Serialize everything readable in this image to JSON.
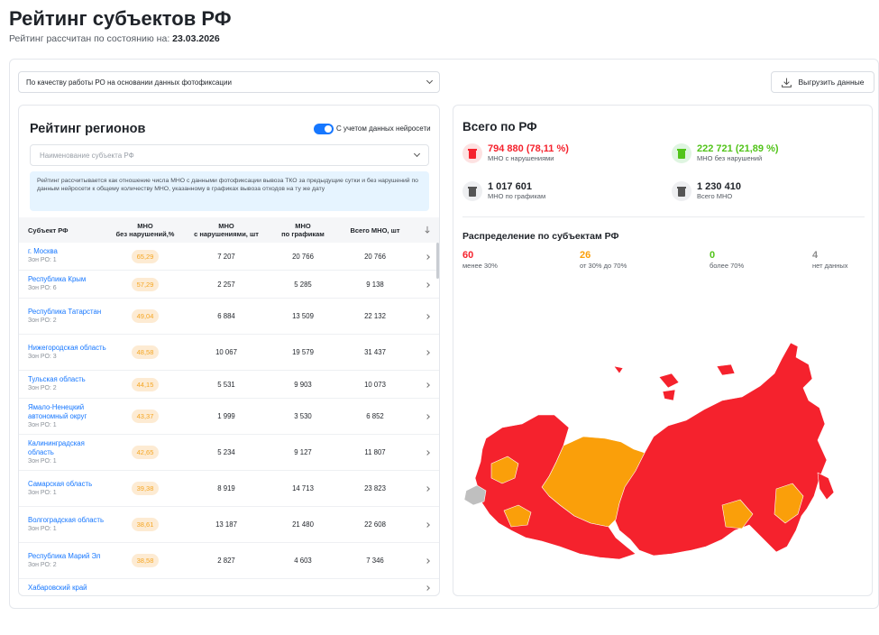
{
  "header": {
    "title": "Рейтинг субъектов РФ",
    "subtitle_prefix": "Рейтинг рассчитан по состоянию на:",
    "subtitle_date": "23.03.2026"
  },
  "filter": {
    "selected": "По качеству работы РО на основании данных фотофиксации"
  },
  "export_button": {
    "label": "Выгрузить данные",
    "icon": "download-icon"
  },
  "rating": {
    "title": "Рейтинг регионов",
    "toggle_label": "С учетом данных нейросети",
    "toggle_on": true,
    "region_placeholder": "Наименование субъекта РФ",
    "info": "Рейтинг рассчитывается как отношение числа МНО с данными фотофиксации вывоза ТКО за предыдущие сутки и без нарушений по данным нейросети к общему количеству МНО, указанному в графиках вывоза отходов на ту же дату",
    "columns": {
      "name": "Субъект РФ",
      "c1_line1": "МНО",
      "c1_line2": "без нарушений,%",
      "c2_line1": "МНО",
      "c2_line2": "с нарушениями, шт",
      "c3_line1": "МНО",
      "c3_line2": "по графикам",
      "c4": "Всего МНО, шт",
      "sort_icon": "arrow-down-icon"
    },
    "rows": [
      {
        "name": "г. Москва",
        "sub": "Зон РО: 1",
        "pct": "65,29",
        "viol": "7 207",
        "sched": "20 766",
        "total": "20 766"
      },
      {
        "name": "Республика Крым",
        "sub": "Зон РО: 6",
        "pct": "57,29",
        "viol": "2 257",
        "sched": "5 285",
        "total": "9 138"
      },
      {
        "name": "Республика Татарстан",
        "sub": "Зон РО: 2",
        "pct": "49,04",
        "viol": "6 884",
        "sched": "13 509",
        "total": "22 132"
      },
      {
        "name": "Нижегородская область",
        "sub": "Зон РО: 3",
        "pct": "48,58",
        "viol": "10 067",
        "sched": "19 579",
        "total": "31 437"
      },
      {
        "name": "Тульская область",
        "sub": "Зон РО: 2",
        "pct": "44,15",
        "viol": "5 531",
        "sched": "9 903",
        "total": "10 073"
      },
      {
        "name": "Ямало-Ненецкий автономный округ",
        "sub": "Зон РО: 1",
        "pct": "43,37",
        "viol": "1 999",
        "sched": "3 530",
        "total": "6 852"
      },
      {
        "name": "Калининградская область",
        "sub": "Зон РО: 1",
        "pct": "42,65",
        "viol": "5 234",
        "sched": "9 127",
        "total": "11 807"
      },
      {
        "name": "Самарская область",
        "sub": "Зон РО: 1",
        "pct": "39,38",
        "viol": "8 919",
        "sched": "14 713",
        "total": "23 823"
      },
      {
        "name": "Волгоградская область",
        "sub": "Зон РО: 1",
        "pct": "38,61",
        "viol": "13 187",
        "sched": "21 480",
        "total": "22 608"
      },
      {
        "name": "Республика Марий Эл",
        "sub": "Зон РО: 2",
        "pct": "38,58",
        "viol": "2 827",
        "sched": "4 603",
        "total": "7 346"
      },
      {
        "name": "Хабаровский край",
        "sub": "",
        "pct": "",
        "viol": "",
        "sched": "",
        "total": ""
      }
    ]
  },
  "summary": {
    "title": "Всего по РФ",
    "violations": {
      "value": "794 880 (78,11 %)",
      "label": "МНО с нарушениями",
      "color": "#f5222d"
    },
    "no_violations": {
      "value": "222 721 (21,89 %)",
      "label": "МНО без нарушений",
      "color": "#52c41a"
    },
    "scheduled": {
      "value": "1 017 601",
      "label": "МНО по графикам"
    },
    "total": {
      "value": "1 230 410",
      "label": "Всего МНО"
    }
  },
  "distribution": {
    "title": "Распределение по субъектам РФ",
    "items": [
      {
        "value": "60",
        "label": "менее 30%",
        "color": "#f5222d"
      },
      {
        "value": "26",
        "label": "от 30% до 70%",
        "color": "#fa9f0a"
      },
      {
        "value": "0",
        "label": "более 70%",
        "color": "#52c41a"
      },
      {
        "value": "4",
        "label": "нет данных",
        "color": "#8c8c8c"
      }
    ]
  },
  "map": {
    "red": "#f5222d",
    "orange": "#fa9f0a",
    "gray": "#bfbfbf"
  }
}
